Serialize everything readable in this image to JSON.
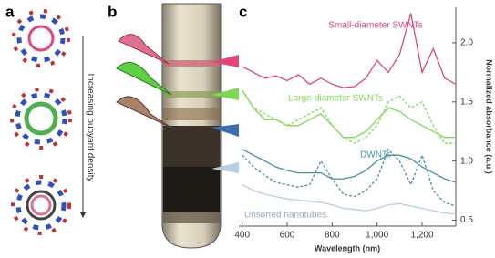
{
  "panels": {
    "a": {
      "label": "a",
      "arrow_text": "Increasing buoyant density"
    },
    "b": {
      "label": "b"
    },
    "c": {
      "label": "c"
    }
  },
  "chart_data": {
    "type": "line",
    "x_label": "Wavelength (nm)",
    "y_label": "Normalized absorbance (a.u.)",
    "x": [
      400,
      450,
      500,
      550,
      600,
      650,
      700,
      750,
      800,
      850,
      900,
      950,
      1000,
      1050,
      1100,
      1150,
      1200,
      1250,
      1300,
      1350
    ],
    "xlim": [
      385,
      1350
    ],
    "ylim": [
      0.45,
      2.3
    ],
    "xticks": [
      400,
      600,
      800,
      {
        "value": 1000,
        "label": "1,000"
      },
      {
        "value": 1200,
        "label": "1,200"
      }
    ],
    "yticks": [
      {
        "value": 0.5,
        "label": "0.5"
      },
      {
        "value": 1,
        "label": "1.0"
      },
      {
        "value": 1.5,
        "label": "1.5"
      },
      {
        "value": 2,
        "label": "2.0"
      }
    ],
    "series": [
      {
        "name": "Small-diameter SWNTs",
        "color": "#e0457b",
        "values": [
          1.8,
          1.75,
          1.7,
          1.72,
          1.68,
          1.73,
          1.65,
          1.7,
          1.65,
          1.62,
          1.63,
          1.7,
          1.85,
          1.75,
          1.9,
          2.25,
          1.75,
          1.95,
          1.7,
          1.65
        ]
      },
      {
        "name": "Large-diameter SWNTs",
        "color": "#7ed957",
        "values": [
          1.6,
          1.45,
          1.35,
          1.35,
          1.3,
          1.3,
          1.35,
          1.4,
          1.3,
          1.2,
          1.2,
          1.25,
          1.35,
          1.45,
          1.42,
          1.35,
          1.3,
          1.25,
          1.2,
          1.2
        ],
        "dashed_values": [
          1.6,
          1.45,
          1.4,
          1.35,
          1.3,
          1.35,
          1.4,
          1.45,
          1.3,
          1.2,
          1.15,
          1.2,
          1.3,
          1.5,
          1.55,
          1.45,
          1.5,
          1.3,
          1.15,
          1.15
        ]
      },
      {
        "name": "DWNTs",
        "color": "#4a8fa8",
        "values": [
          1.1,
          1.05,
          1.0,
          0.95,
          0.92,
          0.9,
          0.9,
          0.9,
          0.85,
          0.85,
          0.87,
          0.92,
          1.0,
          1.05,
          1.05,
          1.02,
          0.95,
          0.9,
          0.85,
          0.82
        ],
        "dashed_values": [
          1.05,
          0.95,
          0.88,
          0.82,
          0.8,
          0.78,
          0.8,
          1.0,
          0.85,
          0.72,
          0.7,
          0.75,
          0.85,
          1.1,
          1.0,
          0.8,
          1.05,
          0.75,
          0.65,
          0.62
        ]
      },
      {
        "name": "Unsorted nanotubes",
        "color": "#b8cde0",
        "values": [
          0.8,
          0.75,
          0.72,
          0.7,
          0.68,
          0.67,
          0.66,
          0.65,
          0.63,
          0.6,
          0.59,
          0.58,
          0.6,
          0.63,
          0.64,
          0.62,
          0.6,
          0.58,
          0.56,
          0.55
        ]
      }
    ]
  }
}
